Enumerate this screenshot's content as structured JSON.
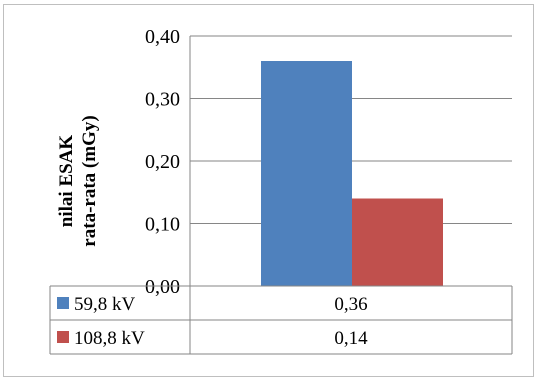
{
  "chart_data": {
    "type": "bar",
    "categories": [
      ""
    ],
    "ylabel_lines": [
      "nilai ESAK",
      "rata-rata (mGy)"
    ],
    "ylim": [
      0,
      0.4
    ],
    "yticks": [
      "0,00",
      "0,10",
      "0,20",
      "0,30",
      "0,40"
    ],
    "grid": true,
    "legend": "data-table",
    "series": [
      {
        "name": "59,8 kV",
        "values": [
          0.36
        ],
        "label": "0,36",
        "color": "#4f81bd"
      },
      {
        "name": "108,8 kV",
        "values": [
          0.14
        ],
        "label": "0,14",
        "color": "#c0504d"
      }
    ]
  }
}
